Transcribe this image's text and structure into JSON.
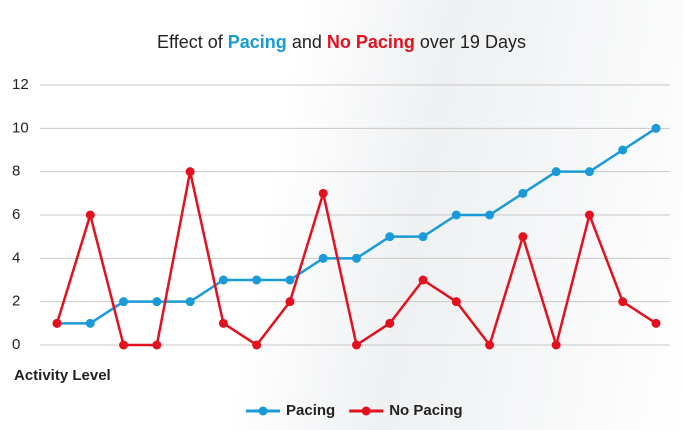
{
  "chart_data": {
    "type": "line",
    "title": [
      "Effect of",
      "Pacing",
      "and",
      "No Pacing",
      "over 19 Days"
    ],
    "y_label": "Activity Level",
    "categories": [
      null,
      null,
      null,
      null,
      null,
      null,
      null,
      null,
      null,
      null,
      null,
      null,
      null,
      null,
      null,
      null,
      null,
      null,
      null
    ],
    "series": [
      {
        "name": "Pacing",
        "color": "#1a9ad6",
        "values": [
          1,
          1,
          2,
          2,
          2,
          3,
          3,
          3,
          4,
          4,
          5,
          5,
          6,
          6,
          7,
          8,
          8,
          9,
          10
        ]
      },
      {
        "name": "No Pacing",
        "color": "#e3101e",
        "values": [
          1,
          6,
          0,
          0,
          8,
          1,
          0,
          2,
          7,
          0,
          1,
          3,
          2,
          0,
          5,
          0,
          6,
          2,
          1
        ]
      }
    ],
    "ylim": [
      0,
      12
    ],
    "yticks": [
      0,
      2,
      4,
      6,
      8,
      10,
      12
    ],
    "grid": true
  }
}
